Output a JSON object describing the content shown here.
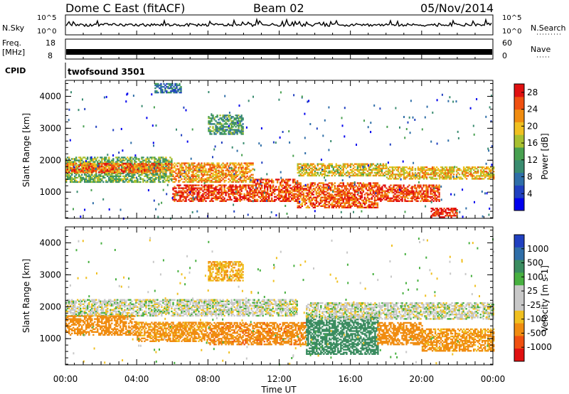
{
  "header": {
    "title": "Dome C East (fitACF)",
    "beam": "Beam 02",
    "date": "05/Nov/2014"
  },
  "strips": {
    "nsky": {
      "label": "N.Sky",
      "tick_top": "10^5",
      "tick_bottom": "10^0"
    },
    "nsearch": {
      "label": "N.Search",
      "tick_top": "10^5",
      "tick_bottom": "10^0"
    },
    "freq": {
      "label_line1": "Freq.",
      "label_line2": "[MHz]",
      "tick_top": "18",
      "tick_bottom": "8"
    },
    "nave": {
      "label": "Nave",
      "tick_top": "60",
      "tick_bottom": "0"
    },
    "cpid": {
      "label": "CPID",
      "program": "twofsound 3501"
    }
  },
  "colors": {
    "power": [
      "#0000ee",
      "#2040c0",
      "#2f6ea8",
      "#3a8c70",
      "#48a050",
      "#a8c030",
      "#f0c020",
      "#f08c10",
      "#f05010",
      "#e01010"
    ],
    "velocity": [
      "#e01010",
      "#f05010",
      "#f08c10",
      "#f0c020",
      "#c8c8c8",
      "#c8c8c8",
      "#48b040",
      "#3a8c60",
      "#2f6ea8",
      "#2040c0"
    ]
  },
  "chart_data": [
    {
      "type": "heatmap",
      "name": "power",
      "title": "",
      "xlabel": "",
      "ylabel": "Slant Range [km]",
      "x_ticks": [
        "00:00",
        "04:00",
        "08:00",
        "12:00",
        "16:00",
        "20:00",
        "00:00"
      ],
      "y_ticks": [
        1000,
        2000,
        3000,
        4000
      ],
      "ylim": [
        180,
        4500
      ],
      "xlim_hours": [
        0,
        24
      ],
      "colorbar": {
        "label": "Power [dB]",
        "ticks": [
          "4",
          "8",
          "12",
          "16",
          "20",
          "24",
          "28"
        ],
        "range": [
          0,
          30
        ]
      },
      "bands": [
        {
          "t0": 0.0,
          "t1": 6.0,
          "r0": 1300,
          "r1": 2100,
          "level": 14
        },
        {
          "t0": 0.0,
          "t1": 6.0,
          "r0": 1600,
          "r1": 1900,
          "level": 24
        },
        {
          "t0": 6.0,
          "t1": 10.5,
          "r0": 700,
          "r1": 1200,
          "level": 27
        },
        {
          "t0": 6.0,
          "t1": 10.5,
          "r0": 1300,
          "r1": 1900,
          "level": 22
        },
        {
          "t0": 10.5,
          "t1": 13.0,
          "r0": 700,
          "r1": 1400,
          "level": 26
        },
        {
          "t0": 13.0,
          "t1": 17.5,
          "r0": 500,
          "r1": 1300,
          "level": 25
        },
        {
          "t0": 13.0,
          "t1": 18.0,
          "r0": 1500,
          "r1": 1900,
          "level": 19
        },
        {
          "t0": 17.5,
          "t1": 21.0,
          "r0": 700,
          "r1": 1200,
          "level": 26
        },
        {
          "t0": 18.0,
          "t1": 24.0,
          "r0": 1400,
          "r1": 1800,
          "level": 20
        },
        {
          "t0": 20.5,
          "t1": 22.0,
          "r0": 200,
          "r1": 500,
          "level": 28
        },
        {
          "t0": 8.0,
          "t1": 10.0,
          "r0": 2800,
          "r1": 3400,
          "level": 12
        },
        {
          "t0": 5.0,
          "t1": 6.5,
          "r0": 4100,
          "r1": 4400,
          "level": 8
        }
      ]
    },
    {
      "type": "heatmap",
      "name": "velocity",
      "title": "",
      "xlabel": "Time UT",
      "ylabel": "Slant Range [km]",
      "x_ticks": [
        "00:00",
        "04:00",
        "08:00",
        "12:00",
        "16:00",
        "20:00",
        "00:00"
      ],
      "y_ticks": [
        1000,
        2000,
        3000,
        4000
      ],
      "ylim": [
        180,
        4500
      ],
      "xlim_hours": [
        0,
        24
      ],
      "colorbar": {
        "label": "Velocity [m s-1]",
        "ticks": [
          "1000",
          "500",
          "100",
          "25",
          "-25",
          "-100",
          "-500",
          "-1000"
        ]
      },
      "bands": [
        {
          "t0": 0.0,
          "t1": 13.0,
          "r0": 1700,
          "r1": 2200,
          "vel": 0
        },
        {
          "t0": 0.0,
          "t1": 4.0,
          "r0": 1100,
          "r1": 1700,
          "vel": -300
        },
        {
          "t0": 4.0,
          "t1": 8.0,
          "r0": 900,
          "r1": 1500,
          "vel": -150
        },
        {
          "t0": 8.0,
          "t1": 13.5,
          "r0": 800,
          "r1": 1500,
          "vel": -350
        },
        {
          "t0": 13.5,
          "t1": 17.5,
          "r0": 500,
          "r1": 1700,
          "vel": 300
        },
        {
          "t0": 17.5,
          "t1": 20.0,
          "r0": 800,
          "r1": 1500,
          "vel": -200
        },
        {
          "t0": 20.0,
          "t1": 24.0,
          "r0": 600,
          "r1": 1300,
          "vel": -150
        },
        {
          "t0": 13.5,
          "t1": 24.0,
          "r0": 1600,
          "r1": 2100,
          "vel": 0
        },
        {
          "t0": 8.0,
          "t1": 10.0,
          "r0": 2800,
          "r1": 3400,
          "vel": -90
        }
      ]
    }
  ]
}
